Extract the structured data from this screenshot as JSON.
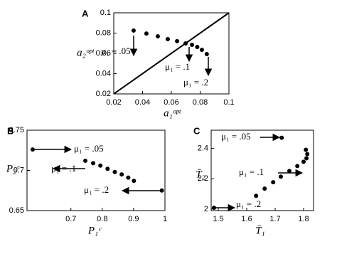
{
  "chart_data": [
    {
      "type": "scatter",
      "panel": "A",
      "x_label": "a₁ᵒᵖᵗ",
      "y_label": "a₂ᵒᵖᵗ",
      "color": "#000000",
      "x": [
        0.0338,
        0.0427,
        0.0506,
        0.0575,
        0.064,
        0.0699,
        0.0743,
        0.078,
        0.0812,
        0.0846
      ],
      "values": [
        0.0825,
        0.0796,
        0.0768,
        0.074,
        0.072,
        0.0698,
        0.0684,
        0.0663,
        0.0635,
        0.0593
      ],
      "xlim": [
        0.02,
        0.1
      ],
      "ylim": [
        0.02,
        0.1
      ],
      "xticks": [
        0.02,
        0.04,
        0.06,
        0.08,
        0.1
      ],
      "yticks": [
        0.02,
        0.04,
        0.06,
        0.08,
        0.1
      ],
      "annotations": [
        "μ₁ = .05",
        "μ₁ = .1",
        "μ₁ = .2"
      ]
    },
    {
      "type": "scatter",
      "panel": "B",
      "x_label": "P₁ᶜ",
      "y_label": "P₂ᶜ",
      "color": "#000000",
      "x": [
        0.578,
        0.746,
        0.771,
        0.794,
        0.817,
        0.84,
        0.862,
        0.883,
        0.901,
        0.99
      ],
      "values": [
        0.726,
        0.712,
        0.709,
        0.706,
        0.702,
        0.698,
        0.695,
        0.691,
        0.687,
        0.675
      ],
      "xlim": [
        0.56,
        1
      ],
      "ylim": [
        0.65,
        0.75
      ],
      "xticks": [
        0.7,
        0.8,
        0.9,
        1
      ],
      "yticks": [
        0.65,
        0.7,
        0.75
      ],
      "annotations": [
        "μ₁ = .05",
        "μ₁ = .1",
        "μ₁ = .2"
      ]
    },
    {
      "type": "scatter",
      "panel": "C",
      "x_label": "T̄₁",
      "y_label": "T̄₂",
      "color": "#000000",
      "x": [
        1.485,
        1.633,
        1.663,
        1.693,
        1.72,
        1.75,
        1.778,
        1.8,
        1.81,
        1.813,
        1.808,
        1.723
      ],
      "values": [
        2.009,
        2.088,
        2.135,
        2.177,
        2.214,
        2.251,
        2.284,
        2.312,
        2.335,
        2.363,
        2.391,
        2.47
      ],
      "xlim": [
        1.475,
        1.835
      ],
      "ylim": [
        1.99,
        2.52
      ],
      "xticks": [
        1.5,
        1.6,
        1.7,
        1.8
      ],
      "yticks": [
        2,
        2.2,
        2.4
      ],
      "annotations": [
        "μ₁ = .05",
        "μ₁ = .1",
        "μ₁ = .2"
      ]
    }
  ]
}
